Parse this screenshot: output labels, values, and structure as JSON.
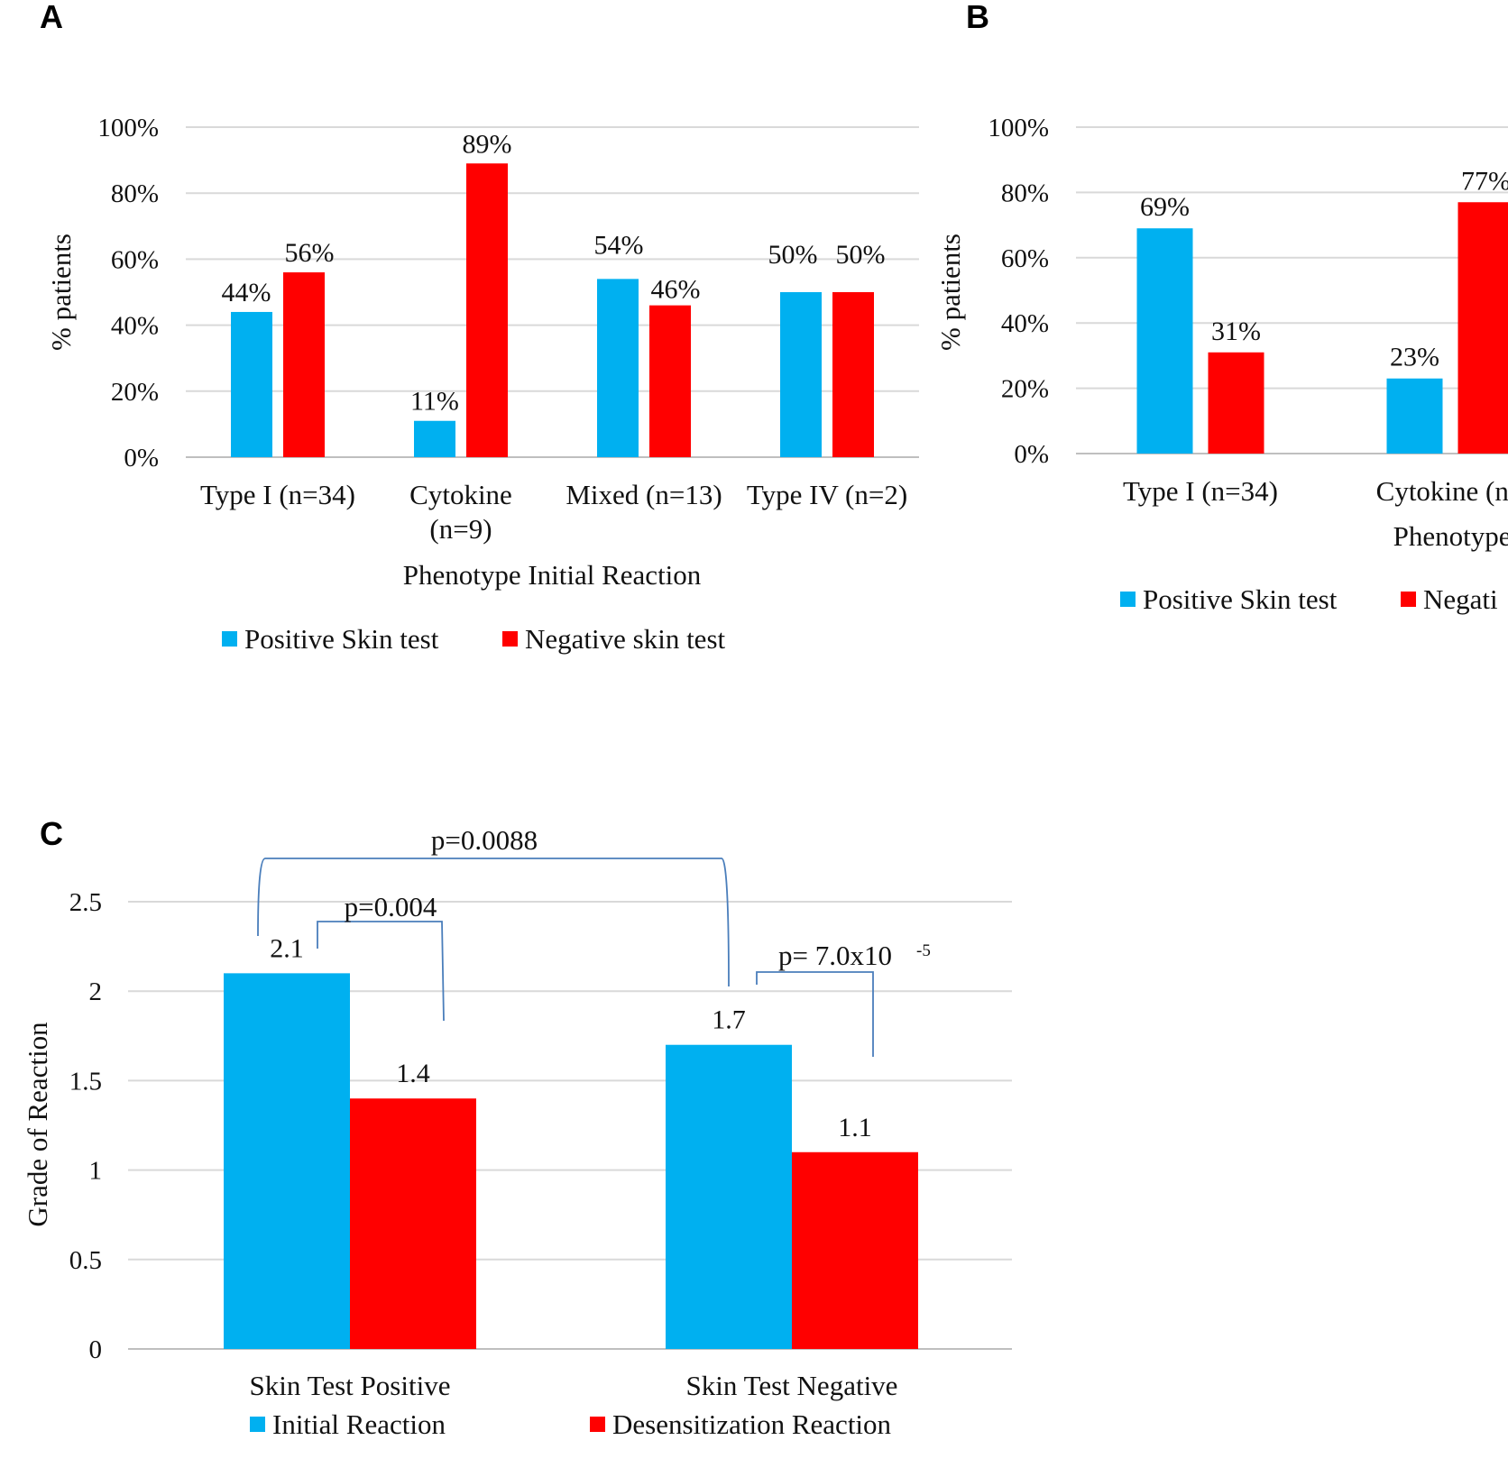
{
  "panels": {
    "A": {
      "letter": "A"
    },
    "B": {
      "letter": "B"
    },
    "C": {
      "letter": "C"
    }
  },
  "colors": {
    "positive": "#00b0f0",
    "negative": "#ff0000"
  },
  "chart_data": [
    {
      "id": "A",
      "type": "bar",
      "ylabel": "% patients",
      "xlabel": "Phenotype Initial Reaction",
      "ylim": [
        0,
        100
      ],
      "yticks": [
        "0%",
        "20%",
        "40%",
        "60%",
        "80%",
        "100%"
      ],
      "categories": [
        [
          "Type I (n=34)"
        ],
        [
          "Cytokine",
          "(n=9)"
        ],
        [
          "Mixed (n=13)"
        ],
        [
          "Type IV (n=2)"
        ]
      ],
      "series": [
        {
          "name": "Positive Skin test",
          "color": "#00b0f0",
          "values": [
            44,
            11,
            54,
            50
          ],
          "labels": [
            "44%",
            "11%",
            "54%",
            "50%"
          ]
        },
        {
          "name": "Negative skin test",
          "color": "#ff0000",
          "values": [
            56,
            89,
            46,
            50
          ],
          "labels": [
            "56%",
            "89%",
            "46%",
            "50%"
          ]
        }
      ],
      "grid": true,
      "legend": "bottom"
    },
    {
      "id": "B",
      "type": "bar",
      "ylabel": "% patients",
      "xlabel": "Phenotype Initial I",
      "ylim": [
        0,
        100
      ],
      "yticks": [
        "0%",
        "20%",
        "40%",
        "60%",
        "80%",
        "100%"
      ],
      "categories": [
        [
          "Type I (n=34)"
        ],
        [
          "Cytokine (n="
        ]
      ],
      "series": [
        {
          "name": "Positive Skin test",
          "color": "#00b0f0",
          "values": [
            69,
            23
          ],
          "labels": [
            "69%",
            "23%"
          ]
        },
        {
          "name": "Negati",
          "color": "#ff0000",
          "values": [
            31,
            77
          ],
          "labels": [
            "31%",
            "77%"
          ]
        }
      ],
      "grid": true,
      "legend": "bottom",
      "note": "cropped at right edge"
    },
    {
      "id": "C",
      "type": "bar",
      "ylabel": "Grade of Reaction",
      "xlabel": "",
      "ylim": [
        0,
        2.5
      ],
      "yticks": [
        "0",
        "0.5",
        "1",
        "1.5",
        "2",
        "2.5"
      ],
      "categories": [
        [
          "Skin Test Positive"
        ],
        [
          "Skin Test Negative"
        ]
      ],
      "series": [
        {
          "name": "Initial Reaction",
          "color": "#00b0f0",
          "values": [
            2.1,
            1.7
          ],
          "labels": [
            "2.1",
            "1.7"
          ]
        },
        {
          "name": "Desensitization Reaction",
          "color": "#ff0000",
          "values": [
            1.4,
            1.1
          ],
          "labels": [
            "1.4",
            "1.1"
          ]
        }
      ],
      "annotations": [
        {
          "text": "p=0.0088"
        },
        {
          "text": "p=0.004"
        },
        {
          "text": "p= 7.0x10",
          "sup": "-5"
        }
      ],
      "grid": true,
      "legend": "bottom"
    }
  ]
}
